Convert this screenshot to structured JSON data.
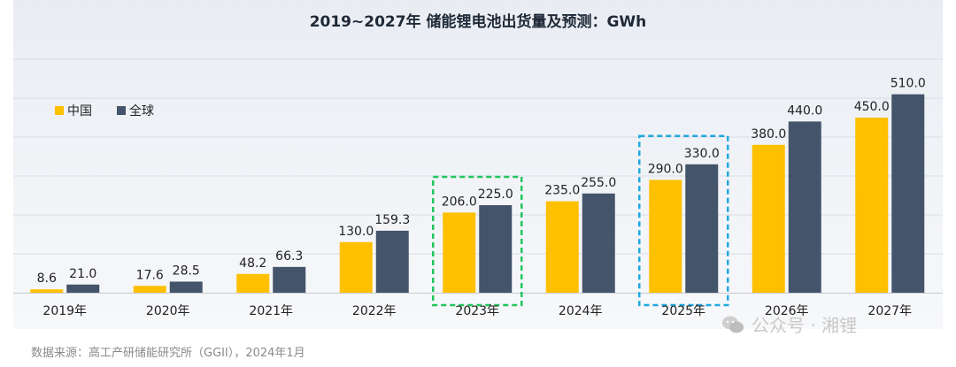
{
  "chart_data": {
    "type": "bar",
    "title": "2019~2027年 储能锂电池出货量及预测：GWh",
    "categories": [
      "2019年",
      "2020年",
      "2021年",
      "2022年",
      "2023年",
      "2024年",
      "2025年",
      "2026年",
      "2027年"
    ],
    "series": [
      {
        "name": "中国",
        "color": "#ffc000",
        "values": [
          8.6,
          17.6,
          48.2,
          130.0,
          206.0,
          235.0,
          290.0,
          380.0,
          450.0
        ]
      },
      {
        "name": "全球",
        "color": "#44546a",
        "values": [
          21.0,
          28.5,
          66.3,
          159.3,
          225.0,
          255.0,
          330.0,
          440.0,
          510.0
        ]
      }
    ],
    "data_labels": {
      "中国": [
        "8.6",
        "17.6",
        "48.2",
        "130.0",
        "206.0",
        "235.0",
        "290.0",
        "380.0",
        "450.0"
      ],
      "全球": [
        "21.0",
        "28.5",
        "66.3",
        "159.3",
        "225.0",
        "255.0",
        "330.0",
        "440.0",
        "510.0"
      ]
    },
    "ylim": [
      0,
      600
    ],
    "grid": true,
    "legend": "top-left",
    "highlight_boxes": [
      {
        "category": "2023年",
        "color": "#22c55e",
        "style": "dashed"
      },
      {
        "category": "2025年",
        "color": "#1fa8e0",
        "style": "dashed"
      }
    ]
  },
  "source": "数据来源：高工产研储能研究所（GGII），2024年1月",
  "watermark": "公众号 · 湘锂",
  "watermark_icon": "wechat-icon"
}
